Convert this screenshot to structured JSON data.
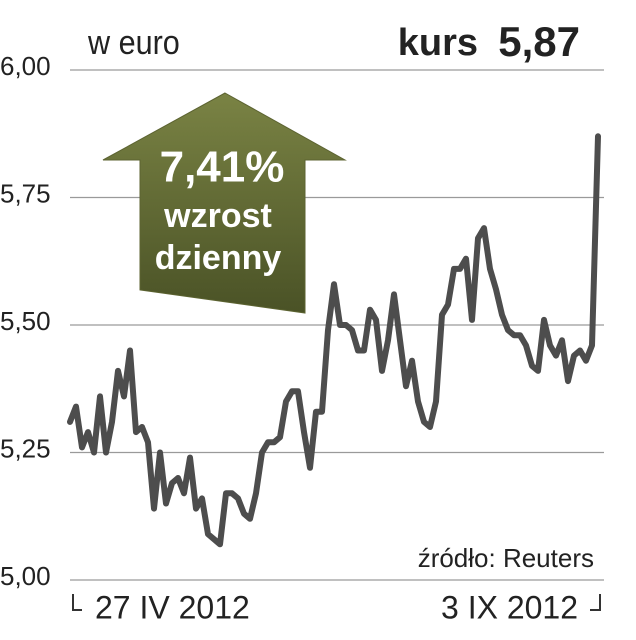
{
  "chart_data": {
    "type": "line",
    "subtitle": "w euro",
    "price_label": "kurs",
    "price_value": "5,87",
    "arrow_value": "7,41%",
    "arrow_line1": "wzrost",
    "arrow_line2": "dzienny",
    "source": "źródło: Reuters",
    "categories": [
      "27 IV 2012",
      null,
      null,
      null,
      null,
      null,
      null,
      null,
      null,
      null,
      null,
      null,
      null,
      null,
      null,
      null,
      null,
      null,
      null,
      null,
      null,
      null,
      null,
      null,
      null,
      null,
      null,
      null,
      null,
      null,
      null,
      null,
      null,
      null,
      null,
      null,
      null,
      null,
      null,
      null,
      null,
      null,
      null,
      null,
      null,
      null,
      null,
      null,
      null,
      null,
      null,
      null,
      null,
      null,
      null,
      null,
      null,
      null,
      null,
      null,
      null,
      null,
      null,
      null,
      null,
      null,
      null,
      null,
      null,
      null,
      null,
      null,
      null,
      null,
      null,
      null,
      null,
      null,
      null,
      null,
      null,
      null,
      null,
      null,
      null,
      null,
      null,
      null,
      "3 IX 2012"
    ],
    "series": [
      {
        "color": "#4d4d4d",
        "values": [
          5.31,
          5.34,
          5.26,
          5.29,
          5.25,
          5.36,
          5.25,
          5.31,
          5.41,
          5.36,
          5.45,
          5.29,
          5.3,
          5.27,
          5.14,
          5.25,
          5.15,
          5.19,
          5.2,
          5.17,
          5.24,
          5.14,
          5.16,
          5.09,
          5.08,
          5.07,
          5.17,
          5.17,
          5.16,
          5.13,
          5.12,
          5.17,
          5.25,
          5.27,
          5.27,
          5.28,
          5.35,
          5.37,
          5.37,
          5.29,
          5.22,
          5.33,
          5.33,
          5.49,
          5.58,
          5.5,
          5.5,
          5.49,
          5.45,
          5.45,
          5.53,
          5.51,
          5.41,
          5.47,
          5.56,
          5.47,
          5.38,
          5.43,
          5.35,
          5.31,
          5.3,
          5.35,
          5.52,
          5.54,
          5.61,
          5.61,
          5.63,
          5.51,
          5.67,
          5.69,
          5.61,
          5.57,
          5.52,
          5.49,
          5.48,
          5.48,
          5.46,
          5.42,
          5.41,
          5.51,
          5.46,
          5.44,
          5.47,
          5.39,
          5.44,
          5.45,
          5.43,
          5.46,
          5.87
        ]
      }
    ],
    "arrow_color": "#5c6331",
    "ylim": [
      5,
      6
    ],
    "yticks": [
      {
        "value": 5,
        "label": "5,00"
      },
      {
        "value": 5.25,
        "label": "5,25"
      },
      {
        "value": 5.5,
        "label": "5,50"
      },
      {
        "value": 5.75,
        "label": "5,75"
      },
      {
        "value": 6,
        "label": "6,00"
      }
    ],
    "grid": true
  }
}
